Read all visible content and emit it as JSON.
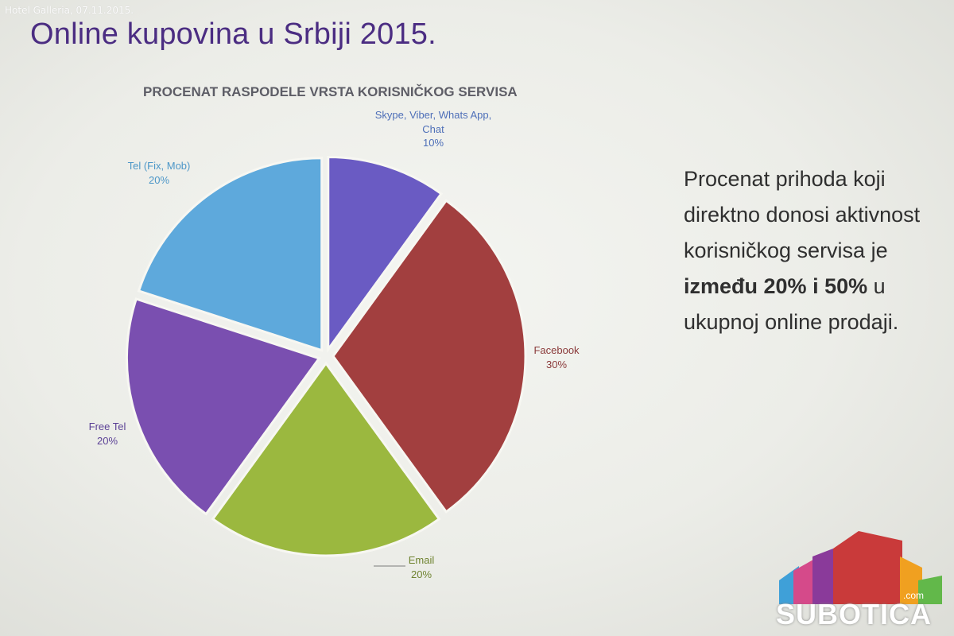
{
  "watermark": "Hotel Galleria, 07.11.2015.",
  "slide": {
    "title": "Online kupovina u Srbiji 2015.",
    "text": {
      "part1": "Procenat prihoda koji direktno donosi aktivnost korisničkog servisa je ",
      "bold1": "između 20%",
      "part2": " ",
      "bold2": "i 50%",
      "part3": " u ukupnoj online prodaji."
    }
  },
  "chart_data": {
    "type": "pie",
    "title": "PROCENAT RASPODELE VRSTA KORISNIČKOG SERVISA",
    "slices": [
      {
        "label": "Skype, Viber, Whats App, Chat",
        "value": 10,
        "value_label": "10%",
        "color": "#6a5bc3",
        "label_color": "#4e6fb8"
      },
      {
        "label": "Facebook",
        "value": 30,
        "value_label": "30%",
        "color": "#a23f3f",
        "label_color": "#8a3a3a"
      },
      {
        "label": "Email",
        "value": 20,
        "value_label": "20%",
        "color": "#9bb83f",
        "label_color": "#6f8330"
      },
      {
        "label": "Free Tel",
        "value": 20,
        "value_label": "20%",
        "color": "#7a4fb0",
        "label_color": "#5c4296"
      },
      {
        "label": "Tel (Fix, Mob)",
        "value": 20,
        "value_label": "20%",
        "color": "#5ea9dc",
        "label_color": "#4d97c8"
      }
    ]
  },
  "logo": {
    "text": "SUBOTICA",
    "suffix": ".com"
  }
}
